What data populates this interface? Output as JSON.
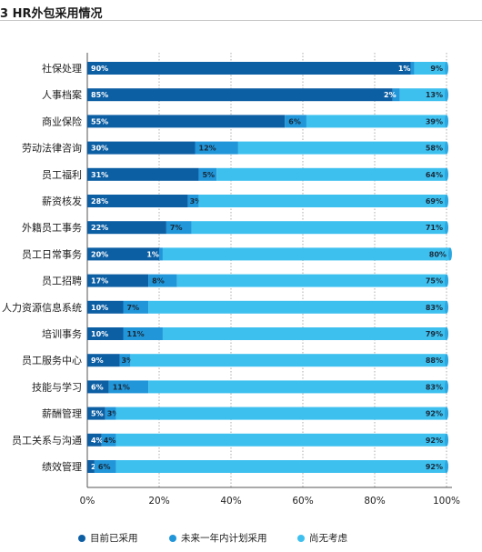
{
  "title": "3 HR外包采用情况",
  "chart_data": {
    "type": "bar",
    "orientation": "horizontal",
    "stacked": true,
    "title": "3 HR外包采用情况",
    "categories": [
      "社保处理",
      "人事档案",
      "商业保险",
      "劳动法律咨询",
      "员工福利",
      "薪资核发",
      "外籍员工事务",
      "员工日常事务",
      "员工招聘",
      "人力资源信息系统",
      "培训事务",
      "员工服务中心",
      "技能与学习",
      "薪酬管理",
      "员工关系与沟通",
      "绩效管理"
    ],
    "series": [
      {
        "name": "目前已采用",
        "color": "#0d5fa4",
        "values": [
          90,
          85,
          55,
          30,
          31,
          28,
          22,
          20,
          17,
          10,
          10,
          9,
          6,
          5,
          4,
          2
        ]
      },
      {
        "name": "未来一年内计划采用",
        "color": "#2196d9",
        "values": [
          1,
          2,
          6,
          12,
          5,
          3,
          7,
          1,
          8,
          7,
          11,
          3,
          11,
          3,
          4,
          6
        ]
      },
      {
        "name": "尚无考虑",
        "color": "#3ec0ef",
        "values": [
          9,
          13,
          39,
          58,
          64,
          69,
          71,
          80,
          75,
          83,
          79,
          88,
          83,
          92,
          92,
          92
        ]
      }
    ],
    "xlim": [
      0,
      100
    ],
    "xticks": [
      "0%",
      "20%",
      "40%",
      "60%",
      "80%",
      "100%"
    ],
    "grid": true,
    "legend_position": "bottom"
  }
}
